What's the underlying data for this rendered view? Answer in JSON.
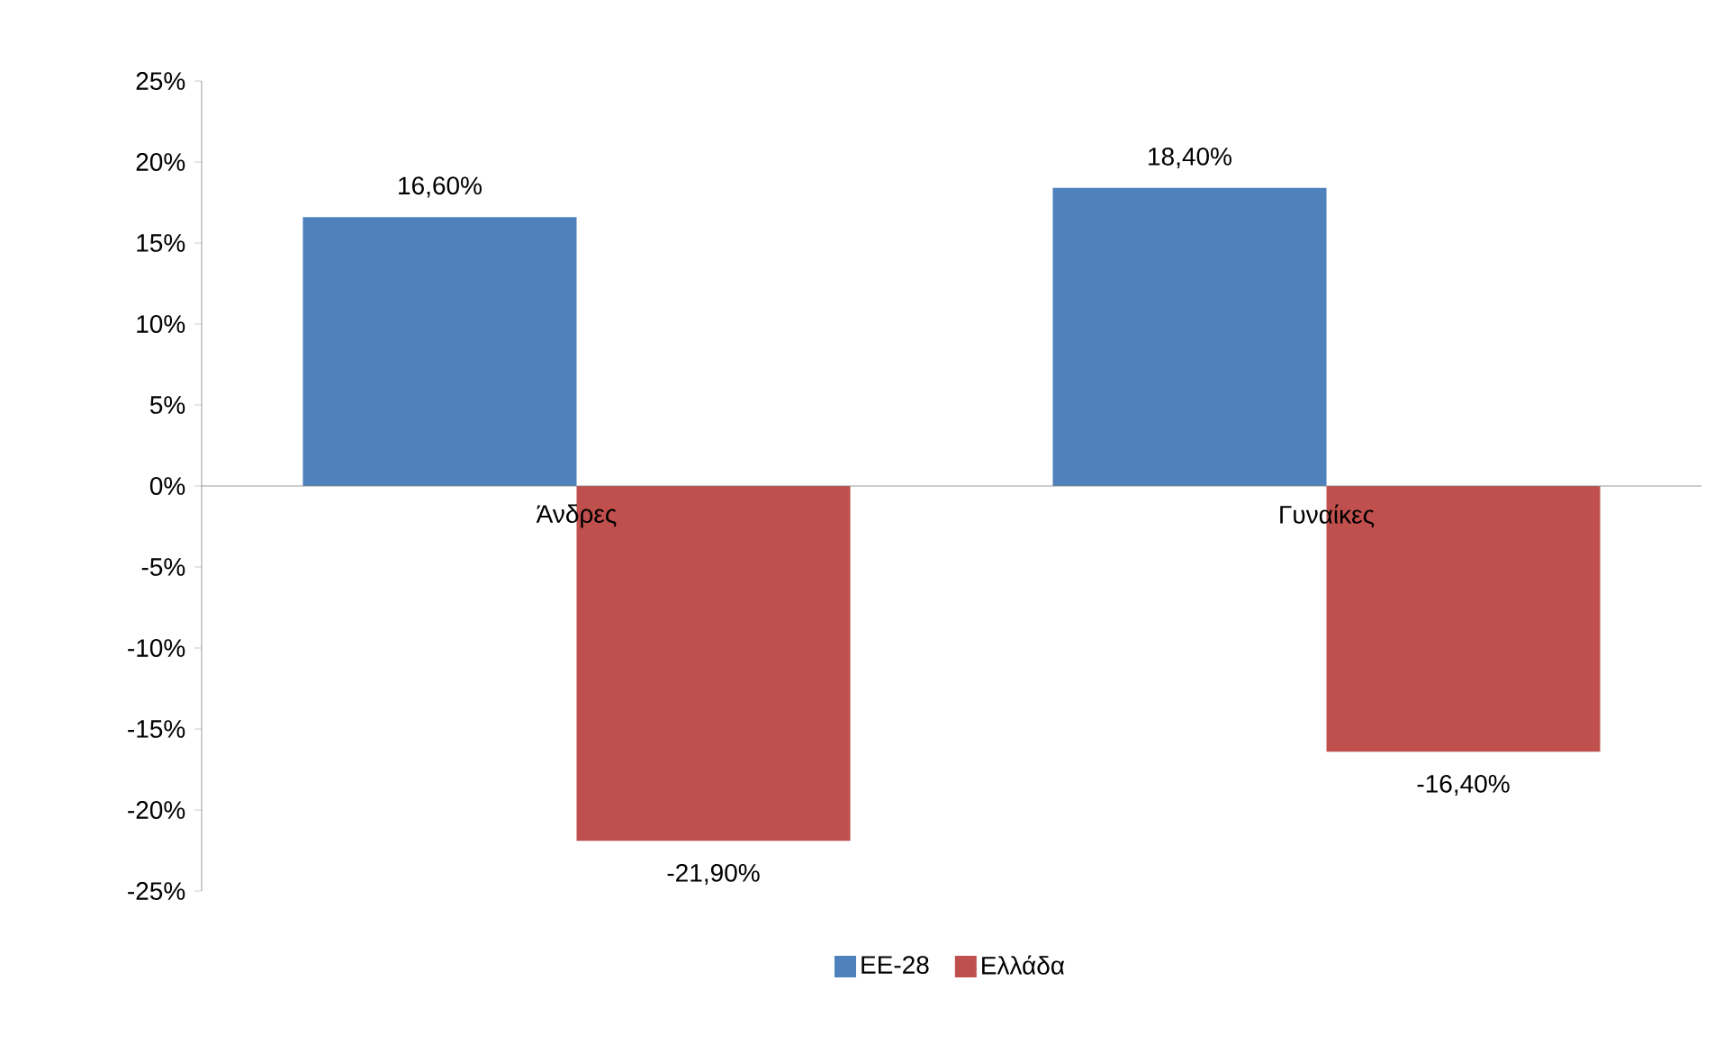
{
  "chart_data": {
    "type": "bar",
    "categories": [
      "Άνδρες",
      "Γυναίκες"
    ],
    "series": [
      {
        "name": "ΕΕ-28",
        "color": "#4f81bd",
        "values": [
          16.6,
          18.4
        ],
        "value_labels": [
          "16,60%",
          "18,40%"
        ]
      },
      {
        "name": "Ελλάδα",
        "color": "#c0504d",
        "values": [
          -21.9,
          -16.4
        ],
        "value_labels": [
          "-21,90%",
          "-16,40%"
        ]
      }
    ],
    "ylim": [
      -25,
      25
    ],
    "yticks": [
      {
        "value": -25,
        "label": "-25%"
      },
      {
        "value": -20,
        "label": "-20%"
      },
      {
        "value": -15,
        "label": "-15%"
      },
      {
        "value": -10,
        "label": "-10%"
      },
      {
        "value": -5,
        "label": "-5%"
      },
      {
        "value": 0,
        "label": "0%"
      },
      {
        "value": 5,
        "label": "5%"
      },
      {
        "value": 10,
        "label": "10%"
      },
      {
        "value": 15,
        "label": "15%"
      },
      {
        "value": 20,
        "label": "20%"
      },
      {
        "value": 25,
        "label": "25%"
      }
    ],
    "grid": false,
    "legend": "bottom"
  }
}
